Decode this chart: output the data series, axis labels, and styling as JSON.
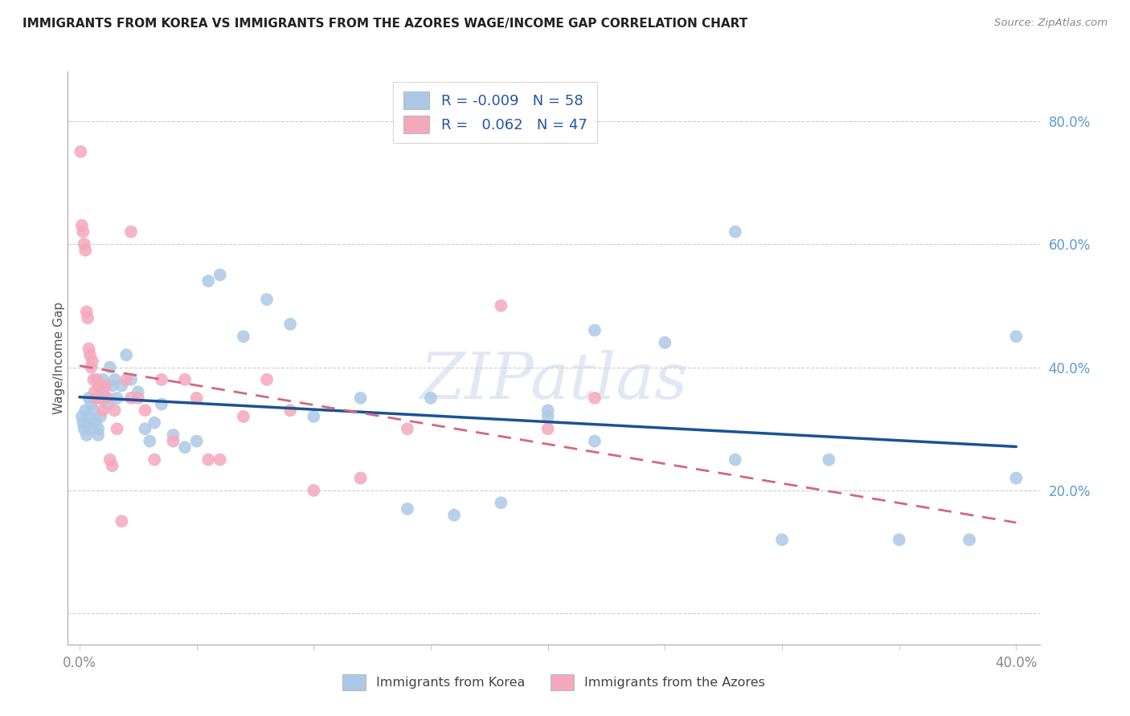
{
  "title": "IMMIGRANTS FROM KOREA VS IMMIGRANTS FROM THE AZORES WAGE/INCOME GAP CORRELATION CHART",
  "source": "Source: ZipAtlas.com",
  "ylabel": "Wage/Income Gap",
  "korea_color": "#adc8e6",
  "azores_color": "#f4a8bc",
  "korea_R": "-0.009",
  "korea_N": "58",
  "azores_R": "0.062",
  "azores_N": "47",
  "korea_line_color": "#1a5296",
  "azores_line_color": "#d4687a",
  "watermark": "ZIPatlas",
  "xlim": [
    -0.5,
    41.0
  ],
  "ylim": [
    -5.0,
    88.0
  ],
  "yticks": [
    0,
    20,
    40,
    60,
    80
  ],
  "xticks": [
    0,
    5,
    10,
    15,
    20,
    25,
    30,
    35,
    40
  ],
  "korea_x": [
    0.1,
    0.15,
    0.2,
    0.25,
    0.3,
    0.35,
    0.4,
    0.4,
    0.5,
    0.5,
    0.6,
    0.7,
    0.8,
    0.8,
    0.9,
    1.0,
    1.0,
    1.1,
    1.2,
    1.3,
    1.4,
    1.5,
    1.6,
    1.8,
    2.0,
    2.2,
    2.5,
    2.8,
    3.0,
    3.2,
    3.5,
    4.0,
    4.5,
    5.0,
    6.0,
    7.0,
    8.0,
    9.0,
    10.0,
    12.0,
    14.0,
    16.0,
    18.0,
    20.0,
    22.0,
    25.0,
    28.0,
    30.0,
    32.0,
    35.0,
    38.0,
    40.0,
    40.0,
    28.0,
    15.0,
    20.0,
    22.0,
    5.5
  ],
  "korea_y": [
    32,
    31,
    30,
    33,
    29,
    32,
    30,
    35,
    31,
    34,
    33,
    31,
    30,
    29,
    32,
    38,
    36,
    35,
    34,
    40,
    37,
    38,
    35,
    37,
    42,
    38,
    36,
    30,
    28,
    31,
    34,
    29,
    27,
    28,
    55,
    45,
    51,
    47,
    32,
    35,
    17,
    16,
    18,
    33,
    46,
    44,
    25,
    12,
    25,
    12,
    12,
    45,
    22,
    62,
    35,
    32,
    28,
    54
  ],
  "azores_x": [
    0.05,
    0.1,
    0.15,
    0.2,
    0.25,
    0.3,
    0.35,
    0.4,
    0.45,
    0.5,
    0.55,
    0.6,
    0.65,
    0.7,
    0.75,
    0.8,
    0.85,
    0.9,
    1.0,
    1.1,
    1.2,
    1.3,
    1.4,
    1.5,
    1.6,
    1.8,
    2.0,
    2.2,
    2.5,
    2.8,
    3.2,
    3.5,
    4.0,
    4.5,
    5.0,
    6.0,
    7.0,
    8.0,
    9.0,
    10.0,
    12.0,
    14.0,
    18.0,
    22.0,
    20.0,
    5.5,
    2.2
  ],
  "azores_y": [
    75,
    63,
    62,
    60,
    59,
    49,
    48,
    43,
    42,
    40,
    41,
    38,
    36,
    35,
    38,
    37,
    35,
    35,
    33,
    37,
    35,
    25,
    24,
    33,
    30,
    15,
    38,
    62,
    35,
    33,
    25,
    38,
    28,
    38,
    35,
    25,
    32,
    38,
    33,
    20,
    22,
    30,
    50,
    35,
    30,
    25,
    35
  ]
}
